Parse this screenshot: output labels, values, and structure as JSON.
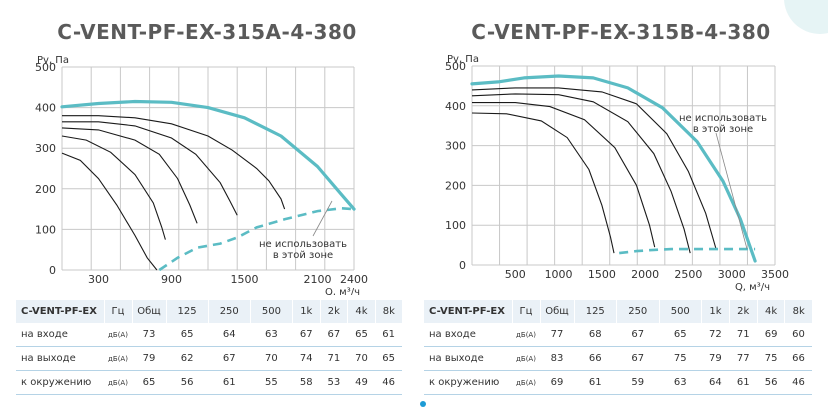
{
  "chart_data": [
    {
      "type": "line",
      "title": "C-VENT-PF-EX-315A-4-380",
      "ylabel": "Pv, Па",
      "xlabel": "Q, м³/ч",
      "xticks": [
        300,
        900,
        1500,
        2100,
        2400
      ],
      "yticks": [
        0,
        100,
        200,
        300,
        400,
        500
      ],
      "xlim": [
        0,
        2400
      ],
      "ylim": [
        0,
        500
      ],
      "grid": true,
      "annotation": "не использовать\nв этой зоне",
      "series": [
        {
          "style": "max-curve",
          "points": [
            [
              0,
              402
            ],
            [
              300,
              410
            ],
            [
              600,
              415
            ],
            [
              900,
              413
            ],
            [
              1200,
              400
            ],
            [
              1500,
              375
            ],
            [
              1800,
              330
            ],
            [
              2100,
              255
            ],
            [
              2300,
              185
            ],
            [
              2400,
              150
            ]
          ]
        },
        {
          "style": "speed-curve",
          "points": [
            [
              0,
              380
            ],
            [
              300,
              380
            ],
            [
              600,
              375
            ],
            [
              900,
              360
            ],
            [
              1200,
              330
            ],
            [
              1400,
              295
            ],
            [
              1600,
              250
            ],
            [
              1700,
              220
            ],
            [
              1800,
              175
            ],
            [
              1830,
              150
            ]
          ]
        },
        {
          "style": "speed-curve",
          "points": [
            [
              0,
              365
            ],
            [
              300,
              365
            ],
            [
              600,
              355
            ],
            [
              900,
              325
            ],
            [
              1100,
              285
            ],
            [
              1300,
              215
            ],
            [
              1380,
              170
            ],
            [
              1440,
              135
            ]
          ]
        },
        {
          "style": "speed-curve",
          "points": [
            [
              0,
              350
            ],
            [
              300,
              345
            ],
            [
              600,
              320
            ],
            [
              800,
              285
            ],
            [
              950,
              225
            ],
            [
              1050,
              160
            ],
            [
              1110,
              115
            ]
          ]
        },
        {
          "style": "speed-curve",
          "points": [
            [
              0,
              330
            ],
            [
              200,
              320
            ],
            [
              400,
              290
            ],
            [
              600,
              235
            ],
            [
              750,
              165
            ],
            [
              820,
              105
            ],
            [
              850,
              75
            ]
          ]
        },
        {
          "style": "speed-curve",
          "points": [
            [
              0,
              288
            ],
            [
              150,
              270
            ],
            [
              300,
              225
            ],
            [
              450,
              160
            ],
            [
              600,
              85
            ],
            [
              700,
              30
            ],
            [
              780,
              0
            ]
          ]
        },
        {
          "style": "limit-dashed",
          "points": [
            [
              800,
              0
            ],
            [
              950,
              30
            ],
            [
              1110,
              55
            ],
            [
              1300,
              65
            ],
            [
              1440,
              80
            ],
            [
              1600,
              105
            ],
            [
              1830,
              125
            ],
            [
              2100,
              145
            ],
            [
              2300,
              152
            ],
            [
              2400,
              150
            ]
          ]
        }
      ]
    },
    {
      "type": "line",
      "title": "C-VENT-PF-EX-315B-4-380",
      "ylabel": "Pv, Па",
      "xlabel": "Q, м³/ч",
      "xticks": [
        500,
        1000,
        1500,
        2000,
        2500,
        3000,
        3500
      ],
      "yticks": [
        0,
        100,
        200,
        300,
        400,
        500
      ],
      "xlim": [
        0,
        3500
      ],
      "ylim": [
        0,
        500
      ],
      "grid": true,
      "annotation": "не использовать\nв этой зоне",
      "series": [
        {
          "style": "max-curve",
          "points": [
            [
              0,
              455
            ],
            [
              300,
              460
            ],
            [
              600,
              470
            ],
            [
              1000,
              475
            ],
            [
              1400,
              470
            ],
            [
              1800,
              445
            ],
            [
              2200,
              395
            ],
            [
              2600,
              310
            ],
            [
              2900,
              210
            ],
            [
              3100,
              115
            ],
            [
              3270,
              10
            ]
          ]
        },
        {
          "style": "speed-curve",
          "points": [
            [
              0,
              440
            ],
            [
              500,
              445
            ],
            [
              1000,
              445
            ],
            [
              1500,
              435
            ],
            [
              1900,
              405
            ],
            [
              2250,
              330
            ],
            [
              2500,
              235
            ],
            [
              2700,
              130
            ],
            [
              2820,
              40
            ]
          ]
        },
        {
          "style": "speed-curve",
          "points": [
            [
              0,
              425
            ],
            [
              500,
              430
            ],
            [
              1000,
              428
            ],
            [
              1400,
              410
            ],
            [
              1800,
              360
            ],
            [
              2100,
              280
            ],
            [
              2300,
              185
            ],
            [
              2450,
              90
            ],
            [
              2520,
              30
            ]
          ]
        },
        {
          "style": "speed-curve",
          "points": [
            [
              0,
              408
            ],
            [
              500,
              408
            ],
            [
              900,
              398
            ],
            [
              1300,
              365
            ],
            [
              1650,
              295
            ],
            [
              1900,
              200
            ],
            [
              2050,
              100
            ],
            [
              2110,
              45
            ]
          ]
        },
        {
          "style": "speed-curve",
          "points": [
            [
              0,
              382
            ],
            [
              400,
              380
            ],
            [
              800,
              362
            ],
            [
              1100,
              320
            ],
            [
              1350,
              240
            ],
            [
              1500,
              150
            ],
            [
              1600,
              70
            ],
            [
              1640,
              30
            ]
          ]
        },
        {
          "style": "limit-dashed",
          "points": [
            [
              1700,
              30
            ],
            [
              1900,
              35
            ],
            [
              2100,
              38
            ],
            [
              2300,
              40
            ],
            [
              2500,
              40
            ],
            [
              2700,
              40
            ],
            [
              2900,
              40
            ],
            [
              3100,
              40
            ],
            [
              3270,
              40
            ]
          ]
        }
      ]
    }
  ],
  "tables": [
    {
      "model": "C-VENT-PF-EX",
      "unit_header": "Гц",
      "columns": [
        "Общ",
        "125",
        "250",
        "500",
        "1k",
        "2k",
        "4k",
        "8k"
      ],
      "rows": [
        {
          "label": "на входе",
          "unit": "дБ(А)",
          "values": [
            "73",
            "65",
            "64",
            "63",
            "67",
            "67",
            "65",
            "61"
          ]
        },
        {
          "label": "на выходе",
          "unit": "дБ(А)",
          "values": [
            "79",
            "62",
            "67",
            "70",
            "74",
            "71",
            "70",
            "65"
          ]
        },
        {
          "label": "к окружению",
          "unit": "дБ(А)",
          "values": [
            "65",
            "56",
            "61",
            "55",
            "58",
            "53",
            "49",
            "46"
          ]
        }
      ]
    },
    {
      "model": "C-VENT-PF-EX",
      "unit_header": "Гц",
      "columns": [
        "Общ",
        "125",
        "250",
        "500",
        "1k",
        "2k",
        "4k",
        "8k"
      ],
      "rows": [
        {
          "label": "на входе",
          "unit": "дБ(А)",
          "values": [
            "77",
            "68",
            "67",
            "65",
            "72",
            "71",
            "69",
            "60"
          ]
        },
        {
          "label": "на выходе",
          "unit": "дБ(А)",
          "values": [
            "83",
            "66",
            "67",
            "75",
            "79",
            "77",
            "75",
            "66"
          ]
        },
        {
          "label": "к окружению",
          "unit": "дБ(А)",
          "values": [
            "69",
            "61",
            "59",
            "63",
            "64",
            "61",
            "56",
            "46"
          ]
        }
      ]
    }
  ],
  "colors": {
    "max_curve": "#5bbcc4",
    "speed_curve": "#1a1a1a",
    "limit": "#5bbcc4",
    "grid": "#c8c8c8",
    "table_header_bg": "#eaf1f7",
    "table_rule": "#b5d3e6"
  }
}
